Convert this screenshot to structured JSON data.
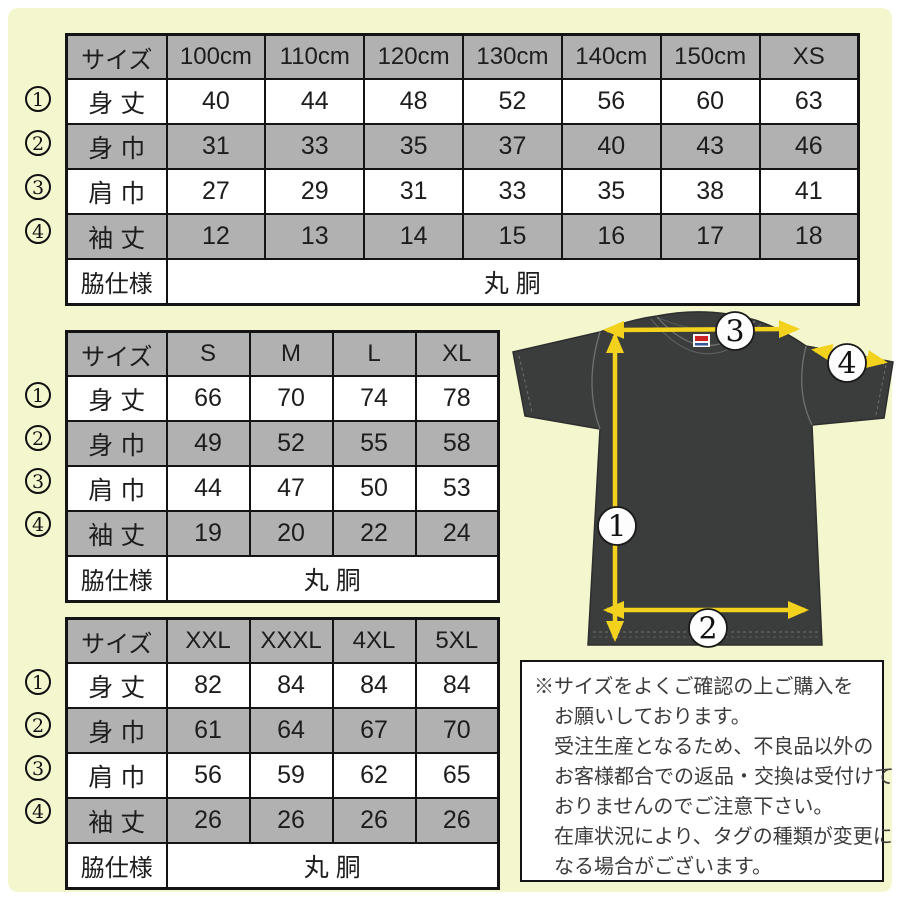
{
  "colors": {
    "background": "#f4f6ce",
    "table_gray": "#b1b1b1",
    "border_black": "#141414",
    "arrow_yellow": "#f2d21d",
    "shirt_dark": "#3a3d3b",
    "tag_red": "#cc2222",
    "tag_blue": "#335599"
  },
  "row_markers": [
    "1",
    "2",
    "3",
    "4"
  ],
  "tables": [
    {
      "name": "size-table-kids-xs",
      "header_label": "サイズ",
      "columns": [
        "100cm",
        "110cm",
        "120cm",
        "130cm",
        "140cm",
        "150cm",
        "XS"
      ],
      "measurements": [
        {
          "num": "1",
          "label": "身 丈",
          "values": [
            "40",
            "44",
            "48",
            "52",
            "56",
            "60",
            "63"
          ]
        },
        {
          "num": "2",
          "label": "身 巾",
          "values": [
            "31",
            "33",
            "35",
            "37",
            "40",
            "43",
            "46"
          ]
        },
        {
          "num": "3",
          "label": "肩 巾",
          "values": [
            "27",
            "29",
            "31",
            "33",
            "35",
            "38",
            "41"
          ]
        },
        {
          "num": "4",
          "label": "袖 丈",
          "values": [
            "12",
            "13",
            "14",
            "15",
            "16",
            "17",
            "18"
          ]
        }
      ],
      "footer": {
        "label": "脇仕様",
        "value": "丸 胴"
      }
    },
    {
      "name": "size-table-adult",
      "header_label": "サイズ",
      "columns": [
        "S",
        "M",
        "L",
        "XL"
      ],
      "measurements": [
        {
          "num": "1",
          "label": "身 丈",
          "values": [
            "66",
            "70",
            "74",
            "78"
          ]
        },
        {
          "num": "2",
          "label": "身 巾",
          "values": [
            "49",
            "52",
            "55",
            "58"
          ]
        },
        {
          "num": "3",
          "label": "肩 巾",
          "values": [
            "44",
            "47",
            "50",
            "53"
          ]
        },
        {
          "num": "4",
          "label": "袖 丈",
          "values": [
            "19",
            "20",
            "22",
            "24"
          ]
        }
      ],
      "footer": {
        "label": "脇仕様",
        "value": "丸 胴"
      }
    },
    {
      "name": "size-table-big",
      "header_label": "サイズ",
      "columns": [
        "XXL",
        "XXXL",
        "4XL",
        "5XL"
      ],
      "measurements": [
        {
          "num": "1",
          "label": "身 丈",
          "values": [
            "82",
            "84",
            "84",
            "84"
          ]
        },
        {
          "num": "2",
          "label": "身 巾",
          "values": [
            "61",
            "64",
            "67",
            "70"
          ]
        },
        {
          "num": "3",
          "label": "肩 巾",
          "values": [
            "56",
            "59",
            "62",
            "65"
          ]
        },
        {
          "num": "4",
          "label": "袖 丈",
          "values": [
            "26",
            "26",
            "26",
            "26"
          ]
        }
      ],
      "footer": {
        "label": "脇仕様",
        "value": "丸 胴"
      }
    }
  ],
  "diagram": {
    "markers": [
      {
        "label": "1",
        "meaning": "身丈"
      },
      {
        "label": "2",
        "meaning": "身巾"
      },
      {
        "label": "3",
        "meaning": "肩巾"
      },
      {
        "label": "4",
        "meaning": "袖丈"
      }
    ]
  },
  "note": {
    "lines": [
      "※サイズをよくご確認の上ご購入を",
      "お願いしております。",
      "受注生産となるため、不良品以外の",
      "お客様都合での返品・交換は受付けて",
      "おりませんのでご注意下さい。",
      "在庫状況により、タグの種類が変更に",
      "なる場合がございます。"
    ]
  }
}
